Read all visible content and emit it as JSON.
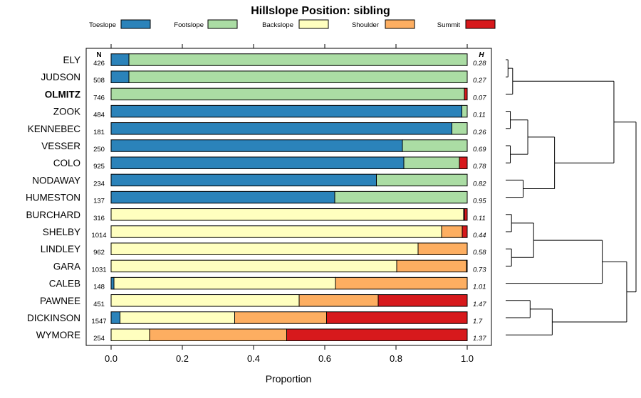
{
  "chart_data": {
    "type": "bar",
    "orientation": "horizontal",
    "stacked": true,
    "title": "Hillslope Position: sibling",
    "xlabel": "Proportion",
    "ylabel": "",
    "xlim": [
      0,
      1
    ],
    "xticks": [
      "0.0",
      "0.2",
      "0.4",
      "0.6",
      "0.8",
      "1.0"
    ],
    "n_header": "N",
    "h_header": "H",
    "highlight": "OLMITZ",
    "legend_position": "top",
    "series": [
      {
        "name": "Toeslope",
        "color": "#2b83ba",
        "values": [
          0.05,
          0.05,
          0.0,
          0.985,
          0.957,
          0.818,
          0.822,
          0.745,
          0.628,
          0.0,
          0.0,
          0.0,
          0.0,
          0.008,
          0.0,
          0.025,
          0.0
        ]
      },
      {
        "name": "Footslope",
        "color": "#abdda4",
        "values": [
          0.95,
          0.95,
          0.992,
          0.015,
          0.043,
          0.182,
          0.156,
          0.255,
          0.372,
          0.0,
          0.0,
          0.0,
          0.0,
          0.0,
          0.0,
          0.0,
          0.0
        ]
      },
      {
        "name": "Backslope",
        "color": "#ffffbf",
        "values": [
          0.0,
          0.0,
          0.0,
          0.0,
          0.0,
          0.0,
          0.0,
          0.0,
          0.0,
          0.99,
          0.928,
          0.862,
          0.802,
          0.622,
          0.528,
          0.322,
          0.108
        ]
      },
      {
        "name": "Shoulder",
        "color": "#fdae61",
        "values": [
          0.0,
          0.0,
          0.0,
          0.0,
          0.0,
          0.0,
          0.0,
          0.0,
          0.0,
          0.002,
          0.058,
          0.138,
          0.196,
          0.37,
          0.222,
          0.258,
          0.385
        ]
      },
      {
        "name": "Summit",
        "color": "#d7191c",
        "values": [
          0.0,
          0.0,
          0.008,
          0.0,
          0.0,
          0.0,
          0.022,
          0.0,
          0.0,
          0.008,
          0.014,
          0.0,
          0.002,
          0.0,
          0.25,
          0.395,
          0.507
        ]
      }
    ],
    "categories": [
      "ELY",
      "JUDSON",
      "OLMITZ",
      "ZOOK",
      "KENNEBEC",
      "VESSER",
      "COLO",
      "NODAWAY",
      "HUMESTON",
      "BURCHARD",
      "SHELBY",
      "LINDLEY",
      "GARA",
      "CALEB",
      "PAWNEE",
      "DICKINSON",
      "WYMORE"
    ],
    "n": [
      "426",
      "508",
      "746",
      "484",
      "181",
      "250",
      "925",
      "234",
      "137",
      "316",
      "1014",
      "962",
      "1031",
      "148",
      "451",
      "1547",
      "254"
    ],
    "h": [
      "0.28",
      "0.27",
      "0.07",
      "0.11",
      "0.26",
      "0.69",
      "0.78",
      "0.82",
      "0.95",
      "0.11",
      "0.44",
      "0.58",
      "0.73",
      "1.01",
      "1.47",
      "1.7",
      "1.37"
    ],
    "dendrogram": {
      "leaves": [
        "ELY",
        "JUDSON",
        "OLMITZ",
        "ZOOK",
        "KENNEBEC",
        "VESSER",
        "COLO",
        "NODAWAY",
        "HUMESTON",
        "BURCHARD",
        "SHELBY",
        "LINDLEY",
        "GARA",
        "CALEB",
        "PAWNEE",
        "DICKINSON",
        "WYMORE"
      ],
      "merges": [
        {
          "a": "ELY",
          "b": "JUDSON",
          "height": 0.02
        },
        {
          "a": "m0",
          "b": "OLMITZ",
          "height": 0.06
        },
        {
          "a": "ZOOK",
          "b": "KENNEBEC",
          "height": 0.04
        },
        {
          "a": "VESSER",
          "b": "COLO",
          "height": 0.04
        },
        {
          "a": "m2",
          "b": "m3",
          "height": 0.19
        },
        {
          "a": "NODAWAY",
          "b": "HUMESTON",
          "height": 0.15
        },
        {
          "a": "m4",
          "b": "m5",
          "height": 0.42
        },
        {
          "a": "m1",
          "b": "m6",
          "height": 0.93
        },
        {
          "a": "BURCHARD",
          "b": "SHELBY",
          "height": 0.05
        },
        {
          "a": "LINDLEY",
          "b": "GARA",
          "height": 0.05
        },
        {
          "a": "m8",
          "b": "m9",
          "height": 0.24
        },
        {
          "a": "m10",
          "b": "CALEB",
          "height": 0.83
        },
        {
          "a": "PAWNEE",
          "b": "DICKINSON",
          "height": 0.21
        },
        {
          "a": "m12",
          "b": "WYMORE",
          "height": 0.4
        },
        {
          "a": "m11",
          "b": "m13",
          "height": 1.04
        },
        {
          "a": "m7",
          "b": "m14",
          "height": 1.12
        }
      ]
    }
  }
}
